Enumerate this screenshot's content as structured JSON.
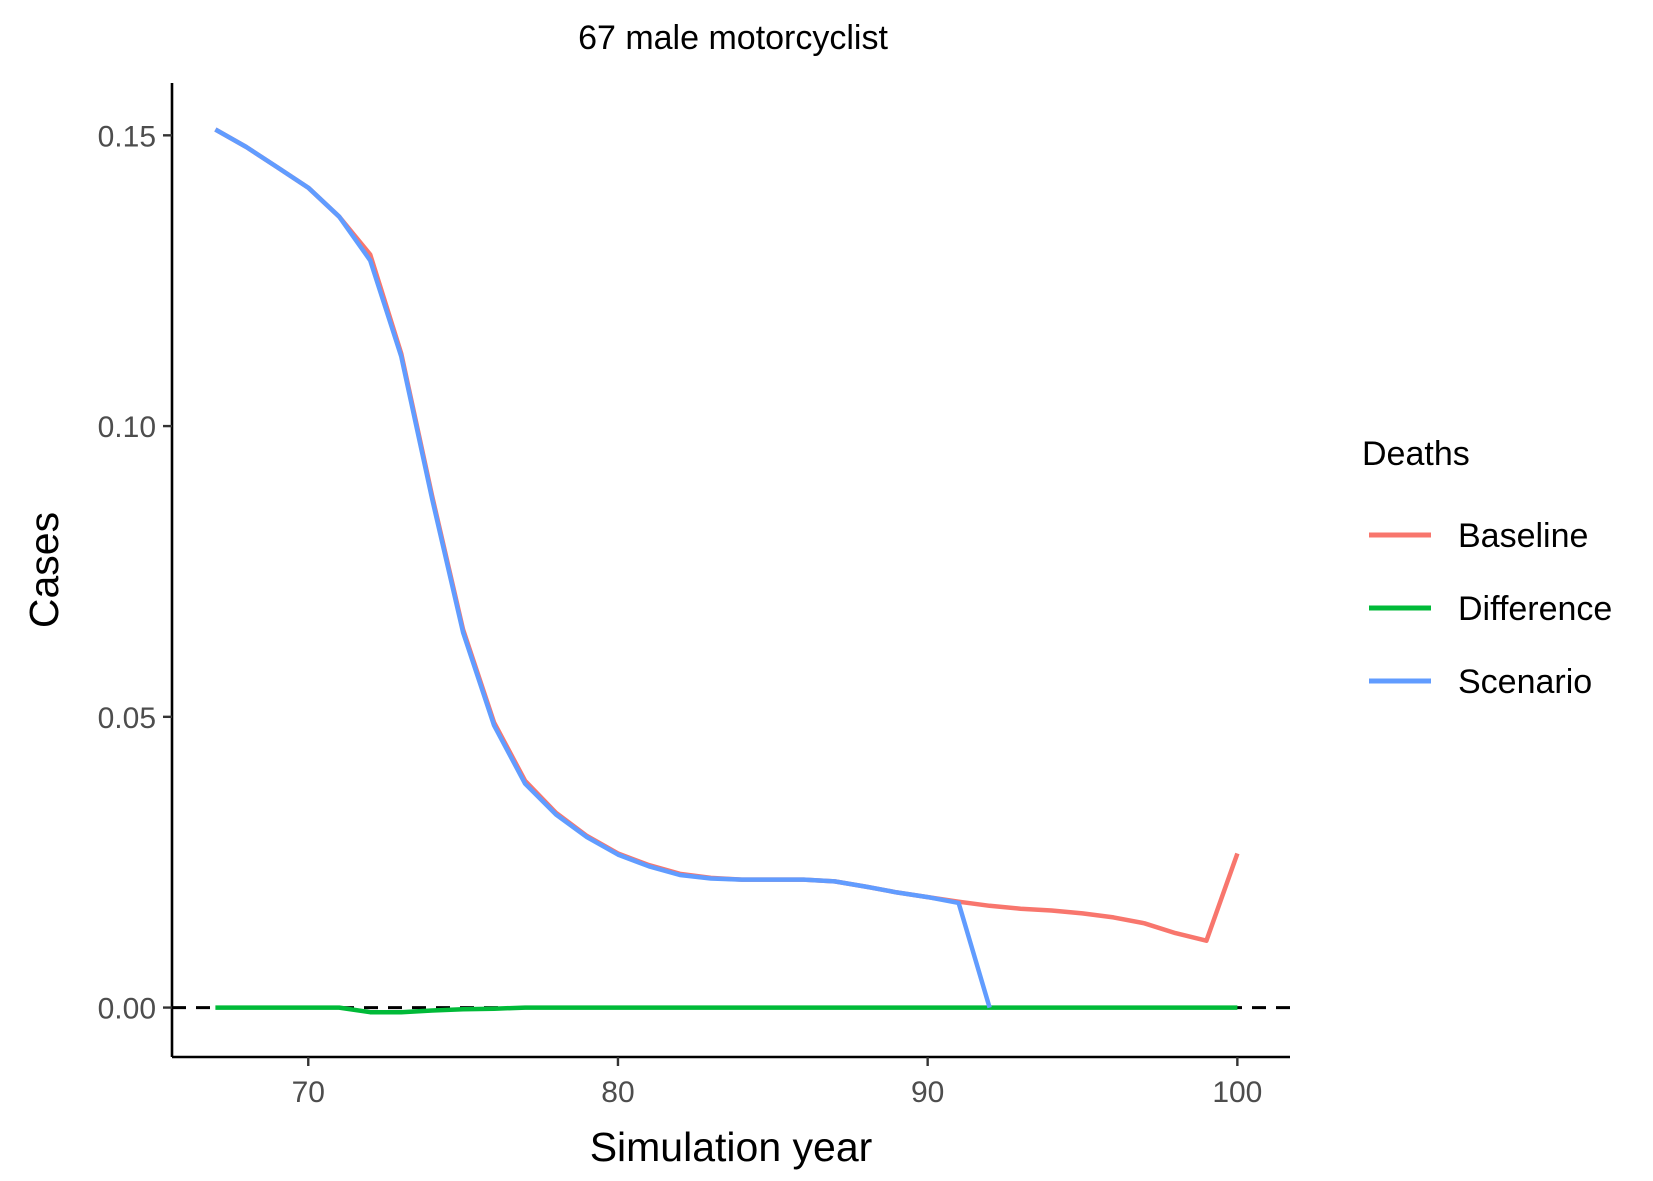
{
  "chart_data": {
    "type": "line",
    "title": "67 male motorcyclist",
    "xlabel": "Simulation year",
    "ylabel": "Cases",
    "xlim": [
      65.6,
      101.7
    ],
    "ylim": [
      -0.0085,
      0.159
    ],
    "x_ticks": [
      70,
      80,
      90,
      100
    ],
    "x_tick_labels": [
      "70",
      "80",
      "90",
      "100"
    ],
    "y_ticks": [
      0,
      0.05,
      0.1,
      0.15
    ],
    "y_tick_labels": [
      "0.00",
      "0.05",
      "0.10",
      "0.15"
    ],
    "grid": false,
    "reference_line": {
      "y": 0,
      "style": "dashed",
      "color": "#000000"
    },
    "legend": {
      "title": "Deaths",
      "position": "right"
    },
    "series": [
      {
        "name": "Baseline",
        "color": "#F8766D",
        "x": [
          67,
          68,
          69,
          70,
          71,
          72,
          73,
          74,
          75,
          76,
          77,
          78,
          79,
          80,
          81,
          82,
          83,
          84,
          85,
          86,
          87,
          88,
          89,
          90,
          91,
          92,
          93,
          94,
          95,
          96,
          97,
          98,
          99,
          100
        ],
        "y": [
          0.151,
          0.148,
          0.1445,
          0.141,
          0.136,
          0.1295,
          0.1125,
          0.088,
          0.065,
          0.049,
          0.039,
          0.0335,
          0.0295,
          0.0265,
          0.0245,
          0.023,
          0.0223,
          0.022,
          0.022,
          0.022,
          0.0217,
          0.0208,
          0.0198,
          0.019,
          0.0182,
          0.0175,
          0.017,
          0.0167,
          0.0162,
          0.0155,
          0.0145,
          0.0128,
          0.0115,
          0.0265
        ]
      },
      {
        "name": "Difference",
        "color": "#00BA38",
        "x": [
          67,
          68,
          69,
          70,
          71,
          72,
          73,
          74,
          75,
          76,
          77,
          78,
          79,
          80,
          81,
          82,
          83,
          84,
          85,
          86,
          87,
          88,
          89,
          90,
          91,
          92,
          93,
          94,
          95,
          96,
          97,
          98,
          99,
          100
        ],
        "y": [
          0,
          0,
          0,
          0,
          0,
          -0.0008,
          -0.0008,
          -0.0005,
          -0.0003,
          -0.0002,
          0,
          0,
          0,
          0,
          0,
          0,
          0,
          0,
          0,
          0,
          0,
          0,
          0,
          0,
          0,
          0,
          0,
          0,
          0,
          0,
          0,
          0,
          0,
          0
        ]
      },
      {
        "name": "Scenario",
        "color": "#619CFF",
        "x": [
          67,
          68,
          69,
          70,
          71,
          72,
          73,
          74,
          75,
          76,
          77,
          78,
          79,
          80,
          81,
          82,
          83,
          84,
          85,
          86,
          87,
          88,
          89,
          90,
          91,
          92
        ],
        "y": [
          0.151,
          0.148,
          0.1445,
          0.141,
          0.136,
          0.1285,
          0.112,
          0.0875,
          0.0645,
          0.0485,
          0.0385,
          0.0332,
          0.0293,
          0.0263,
          0.0243,
          0.0228,
          0.0222,
          0.022,
          0.022,
          0.022,
          0.0217,
          0.0208,
          0.0198,
          0.019,
          0.018,
          0
        ]
      }
    ]
  }
}
